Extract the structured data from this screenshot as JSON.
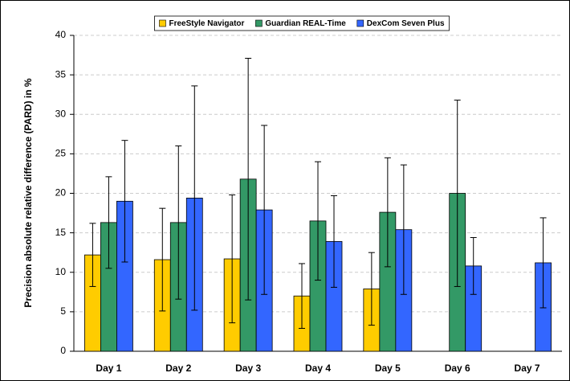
{
  "chart_data": {
    "type": "bar",
    "y_label": "Precision absolute relative difference (PARD) in %",
    "categories": [
      "Day 1",
      "Day 2",
      "Day 3",
      "Day 4",
      "Day 5",
      "Day 6",
      "Day 7"
    ],
    "series": [
      {
        "name": "FreeStyle Navigator",
        "color": "#ffcc00",
        "values": [
          12.2,
          11.6,
          11.7,
          7.0,
          7.9,
          null,
          null
        ],
        "errors": [
          4.0,
          6.5,
          8.1,
          4.1,
          4.6,
          null,
          null
        ]
      },
      {
        "name": "Guardian REAL-Time",
        "color": "#339966",
        "values": [
          16.3,
          16.3,
          21.8,
          16.5,
          17.6,
          20.0,
          null
        ],
        "errors": [
          5.8,
          9.7,
          15.3,
          7.5,
          6.9,
          11.8,
          null
        ]
      },
      {
        "name": "DexCom Seven Plus",
        "color": "#3366ff",
        "values": [
          19.0,
          19.4,
          17.9,
          13.9,
          15.4,
          10.8,
          11.2
        ],
        "errors": [
          7.7,
          14.2,
          10.7,
          5.8,
          8.2,
          3.6,
          5.7
        ]
      }
    ],
    "ylim": [
      0,
      40
    ],
    "yticks": [
      0,
      5,
      10,
      15,
      20,
      25,
      30,
      35,
      40
    ],
    "grid": true,
    "legend": "top"
  }
}
